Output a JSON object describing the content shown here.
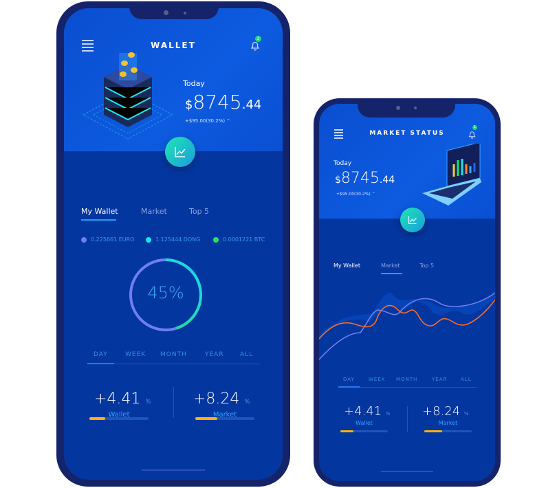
{
  "wallet_phone": {
    "title": "WALLET",
    "notification_count": "2",
    "today_label": "Today",
    "currency_symbol": "$",
    "balance_int": "8745",
    "balance_dec": ".44",
    "change": "+$95.00(30.2%)",
    "tabs": [
      {
        "label": "My Wallet",
        "active": true
      },
      {
        "label": "Market"
      },
      {
        "label": "Top 5"
      }
    ],
    "currencies": [
      {
        "label": "0.225661 EURO",
        "color": "#6f7ff0"
      },
      {
        "label": "1.125444 DONG",
        "color": "#19e6f0"
      },
      {
        "label": "0.0001221 BTC",
        "color": "#1ee860"
      }
    ],
    "progress_percent": 45,
    "progress_label": "45%",
    "periods": [
      "DAY",
      "WEEK",
      "MONTH",
      "YEAR",
      "ALL"
    ],
    "active_period": "DAY",
    "stats": [
      {
        "value": "+4.41",
        "unit": "%",
        "label": "Wallet",
        "fill": 0.27
      },
      {
        "value": "+8.24",
        "unit": "%",
        "label": "Market",
        "fill": 0.37
      }
    ]
  },
  "market_phone": {
    "title": "MARKET STATUS",
    "notification_count": "1",
    "today_label": "Today",
    "currency_symbol": "$",
    "balance_int": "8745",
    "balance_dec": ".44",
    "change": "+$95.00(30.2%)",
    "tabs": [
      {
        "label": "My Wallet"
      },
      {
        "label": "Market",
        "active": true
      },
      {
        "label": "Top 5"
      }
    ],
    "periods": [
      "DAY",
      "WEEK",
      "MONTH",
      "YEAR",
      "ALL"
    ],
    "active_period": "DAY",
    "stats": [
      {
        "value": "+4.41",
        "unit": "%",
        "label": "Wallet",
        "fill": 0.27
      },
      {
        "value": "+8.24",
        "unit": "%",
        "label": "Market",
        "fill": 0.37
      }
    ]
  },
  "colors": {
    "accent": "#1ea0ff",
    "header": "#0a4ed0",
    "body": "#0436a0",
    "frame": "#15246a",
    "progress": "#ffb300"
  }
}
